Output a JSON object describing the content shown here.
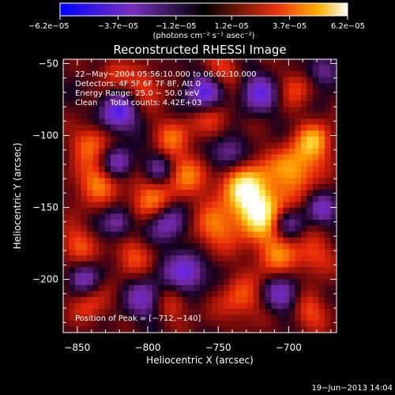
{
  "chart_data": {
    "type": "heatmap",
    "title": "Reconstructed RHESSI Image",
    "xlabel": "Heliocentric X (arcsec)",
    "ylabel": "Heliocentric Y (arcsec)",
    "xlim": [
      -860,
      -666
    ],
    "ylim": [
      -237,
      -47
    ],
    "x_ticks": [
      -850,
      -800,
      -750,
      -700
    ],
    "x_tick_labels": [
      "−850",
      "−800",
      "−750",
      "−700"
    ],
    "y_ticks": [
      -50,
      -100,
      -150,
      -200
    ],
    "y_tick_labels": [
      "−50",
      "−100",
      "−150",
      "−200"
    ],
    "colorbar": {
      "range": [
        -6.2e-05,
        6.2e-05
      ],
      "ticks": [
        -6.2e-05,
        -3.7e-05,
        -1.2e-05,
        1.2e-05,
        3.7e-05,
        6.2e-05
      ],
      "tick_labels": [
        "−6.2e−05",
        "−3.7e−05",
        "−1.2e−05",
        "1.2e−05",
        "3.7e−05",
        "6.2e−05"
      ],
      "units_label": "(photons cm⁻² s⁻¹ asec⁻²)"
    },
    "annotations": [
      "22−May−2004 05:56:10.000 to 06:02:10.000",
      "Detectors: 4F 5F 6F 7F 8F, Att 0",
      "Energy Range: 25.0 − 50.0 keV",
      "Clean     Total counts: 4.42E+03"
    ],
    "peak_label": "Position of Peak = [−712,−140]",
    "peak": [
      -712,
      -140
    ],
    "timestamp": "19−Jun−2013 14:04",
    "colors": {
      "background": "#000000",
      "text": "#ffffff",
      "min": "#0000ff",
      "low": "#7a2fbf",
      "mid": "#000000",
      "high": "#e83010",
      "max": "#ffffff"
    }
  }
}
